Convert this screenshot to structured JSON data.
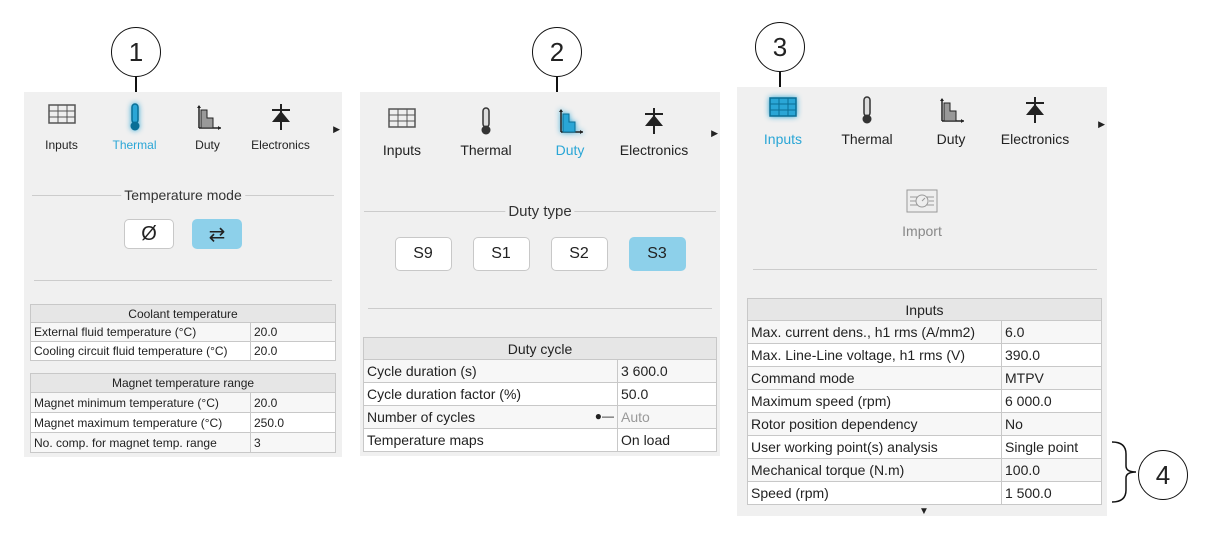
{
  "colors": {
    "accent": "#2aa6d6",
    "selected_button": "#8dd0ea",
    "panel_bg": "#f0f0f0"
  },
  "callouts": [
    "1",
    "2",
    "3",
    "4"
  ],
  "tabs": [
    {
      "label": "Inputs",
      "icon": "table-icon"
    },
    {
      "label": "Thermal",
      "icon": "thermometer-icon"
    },
    {
      "label": "Duty",
      "icon": "duty-chart-icon"
    },
    {
      "label": "Electronics",
      "icon": "diode-icon"
    }
  ],
  "panel1": {
    "active_tab": "Thermal",
    "section_title": "Temperature mode",
    "mode_buttons": [
      {
        "label": "Ø",
        "icon": "none-icon",
        "selected": false
      },
      {
        "label": "⇄",
        "icon": "swap-arrows-icon",
        "selected": true
      }
    ],
    "tables": [
      {
        "title": "Coolant temperature",
        "rows": [
          [
            "External fluid temperature (°C)",
            "20.0"
          ],
          [
            "Cooling circuit fluid temperature (°C)",
            "20.0"
          ]
        ]
      },
      {
        "title": "Magnet temperature range",
        "rows": [
          [
            "Magnet minimum temperature (°C)",
            "20.0"
          ],
          [
            "Magnet maximum temperature (°C)",
            "250.0"
          ],
          [
            "No. comp. for magnet temp. range",
            "3"
          ]
        ]
      }
    ]
  },
  "panel2": {
    "active_tab": "Duty",
    "section_title": "Duty type",
    "duty_buttons": [
      {
        "label": "S9",
        "selected": false
      },
      {
        "label": "S1",
        "selected": false
      },
      {
        "label": "S2",
        "selected": false
      },
      {
        "label": "S3",
        "selected": true
      }
    ],
    "table": {
      "title": "Duty cycle",
      "rows": [
        [
          "Cycle duration (s)",
          "3 600.0"
        ],
        [
          "Cycle duration factor (%)",
          "50.0"
        ],
        [
          "Number of cycles",
          "Auto"
        ],
        [
          "Temperature maps",
          "On load"
        ]
      ]
    }
  },
  "panel3": {
    "active_tab": "Inputs",
    "import_label": "Import",
    "table": {
      "title": "Inputs",
      "rows": [
        [
          "Max. current dens., h1 rms (A/mm2)",
          "6.0"
        ],
        [
          "Max. Line-Line voltage, h1 rms (V)",
          "390.0"
        ],
        [
          "Command mode",
          "MTPV"
        ],
        [
          "Maximum speed (rpm)",
          "6 000.0"
        ],
        [
          "Rotor position dependency",
          "No"
        ],
        [
          "User working point(s) analysis",
          "Single point"
        ],
        [
          "Mechanical torque (N.m)",
          "100.0"
        ],
        [
          "Speed (rpm)",
          "1 500.0"
        ]
      ]
    }
  }
}
